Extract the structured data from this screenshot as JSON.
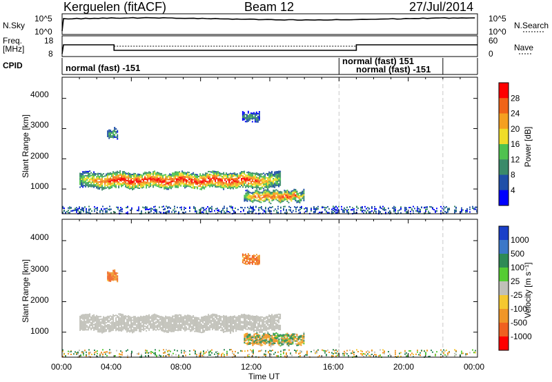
{
  "header": {
    "station": "Kerguelen (fitACF)",
    "beam": "Beam 12",
    "date": "27/Jul/2014"
  },
  "noise_panel": {
    "left_label": "N.Sky",
    "left_ticks": [
      "10^5",
      "10^0"
    ],
    "right_ticks": [
      "10^5",
      "10^0"
    ],
    "right_label": "N.Search"
  },
  "freq_panel": {
    "left_label_line1": "Freq.",
    "left_label_line2": "[MHz]",
    "left_ticks": [
      "18",
      "8"
    ],
    "right_ticks": [
      "60",
      "0"
    ],
    "right_label": "Nave"
  },
  "cpid_panel": {
    "label": "CPID",
    "segments": [
      "normal (fast) -151",
      "normal (fast) 151",
      "normal (fast) -151"
    ]
  },
  "power_panel": {
    "ylabel": "Slant Range [km]",
    "y_ticks": [
      "1000",
      "2000",
      "3000",
      "4000"
    ],
    "colorbar_label": "Power [dB]",
    "colorbar_ticks": [
      "4",
      "8",
      "12",
      "16",
      "20",
      "24",
      "28"
    ],
    "colorbar_colors": [
      "#0000ff",
      "#1f4fa8",
      "#3a8a6a",
      "#4fc24f",
      "#f0dc28",
      "#f5a020",
      "#f06418",
      "#ff0000"
    ]
  },
  "velocity_panel": {
    "ylabel": "Slant Range [km]",
    "y_ticks": [
      "1000",
      "2000",
      "3000",
      "4000"
    ],
    "colorbar_label": "Velocity [m s⁻¹]",
    "colorbar_ticks": [
      "1000",
      "500",
      "100",
      "25",
      "-25",
      "-100",
      "-500",
      "-1000"
    ],
    "colorbar_colors": [
      "#1a3fc8",
      "#3c78c8",
      "#2e8a55",
      "#55cc33",
      "#c0c0b8",
      "#f5c830",
      "#f09628",
      "#f06020",
      "#ff0000"
    ]
  },
  "x_axis": {
    "ticks": [
      "00:00",
      "04:00",
      "08:00",
      "12:00",
      "16:00",
      "20:00",
      "00:00"
    ],
    "label": "Time UT"
  },
  "chart_data": {
    "type": "heatmap",
    "x_unit": "hours UT",
    "xlim": [
      0,
      24
    ],
    "ylim_km": [
      180,
      4700
    ],
    "power_scale_db": [
      0,
      30
    ],
    "velocity_scale_ms": [
      -1000,
      1000
    ],
    "mode_change_times_hours": [
      16,
      22
    ],
    "echo_regions": [
      {
        "name": "main band",
        "start": 1.0,
        "end": 12.6,
        "range_low": 1050,
        "range_high": 1550,
        "power_db": 22,
        "velocity_ms": 0
      },
      {
        "name": "lower band",
        "start": 10.5,
        "end": 14.0,
        "range_low": 600,
        "range_high": 950,
        "power_db": 20,
        "velocity_ms": -25
      },
      {
        "name": "far patch",
        "start": 2.6,
        "end": 3.2,
        "range_low": 2700,
        "range_high": 3000,
        "power_db": 10,
        "velocity_ms": -300
      },
      {
        "name": "far patch",
        "start": 10.4,
        "end": 11.4,
        "range_low": 3250,
        "range_high": 3550,
        "power_db": 8,
        "velocity_ms": -300
      },
      {
        "name": "near range clutter",
        "start": 0,
        "end": 24,
        "range_low": 200,
        "range_high": 450,
        "power_db": 6,
        "velocity_ms": -50
      }
    ]
  }
}
